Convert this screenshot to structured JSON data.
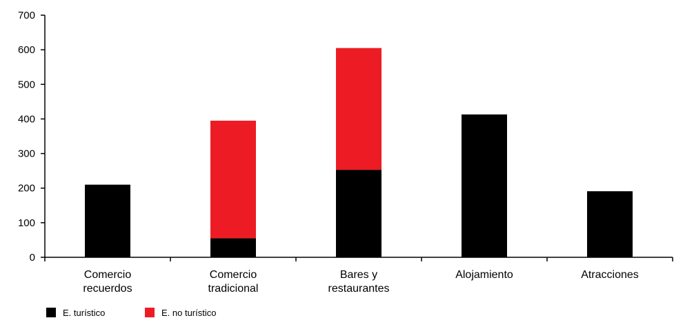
{
  "chart_data": {
    "type": "bar",
    "stacked": true,
    "categories": [
      [
        "Comercio",
        "recuerdos"
      ],
      [
        "Comercio",
        "tradicional"
      ],
      [
        "Bares y",
        "restaurantes"
      ],
      [
        "Alojamiento"
      ],
      [
        "Atracciones"
      ]
    ],
    "series": [
      {
        "name": "E. turístico",
        "color": "#000000",
        "values": [
          210,
          55,
          253,
          413,
          191
        ]
      },
      {
        "name": "E. no turístico",
        "color": "#ed1c24",
        "values": [
          0,
          340,
          352,
          0,
          0
        ]
      }
    ],
    "ylim": [
      0,
      700
    ],
    "yticks": [
      0,
      100,
      200,
      300,
      400,
      500,
      600,
      700
    ],
    "grid": false,
    "legend_position": "bottom-left"
  }
}
